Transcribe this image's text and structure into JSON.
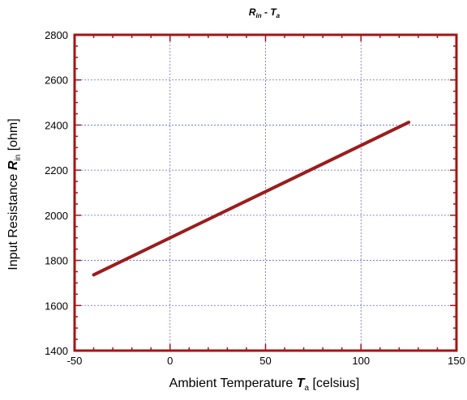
{
  "chart_data": {
    "type": "line",
    "title": {
      "main": "R",
      "main_sub": "in",
      "sep": " - ",
      "var": "T",
      "var_sub": "a"
    },
    "xlabel": {
      "prefix": "Ambient Temperature ",
      "var": "T",
      "sub": "a",
      "unit": " [celsius]"
    },
    "ylabel": {
      "prefix": "Input Resistance ",
      "var": "R",
      "sub": "in",
      "unit": " [ohm]"
    },
    "xlim": [
      -50,
      150
    ],
    "ylim": [
      1400,
      2800
    ],
    "xticks": [
      -50,
      0,
      50,
      100,
      150
    ],
    "yticks": [
      1400,
      1600,
      1800,
      2000,
      2200,
      2400,
      2600,
      2800
    ],
    "grid": true,
    "series": [
      {
        "x": [
          -40,
          125
        ],
        "y": [
          1736,
          2412
        ]
      }
    ],
    "colors": {
      "frame": "#a31515",
      "series": "#9c1c1c",
      "grid": "#6666cc"
    }
  }
}
